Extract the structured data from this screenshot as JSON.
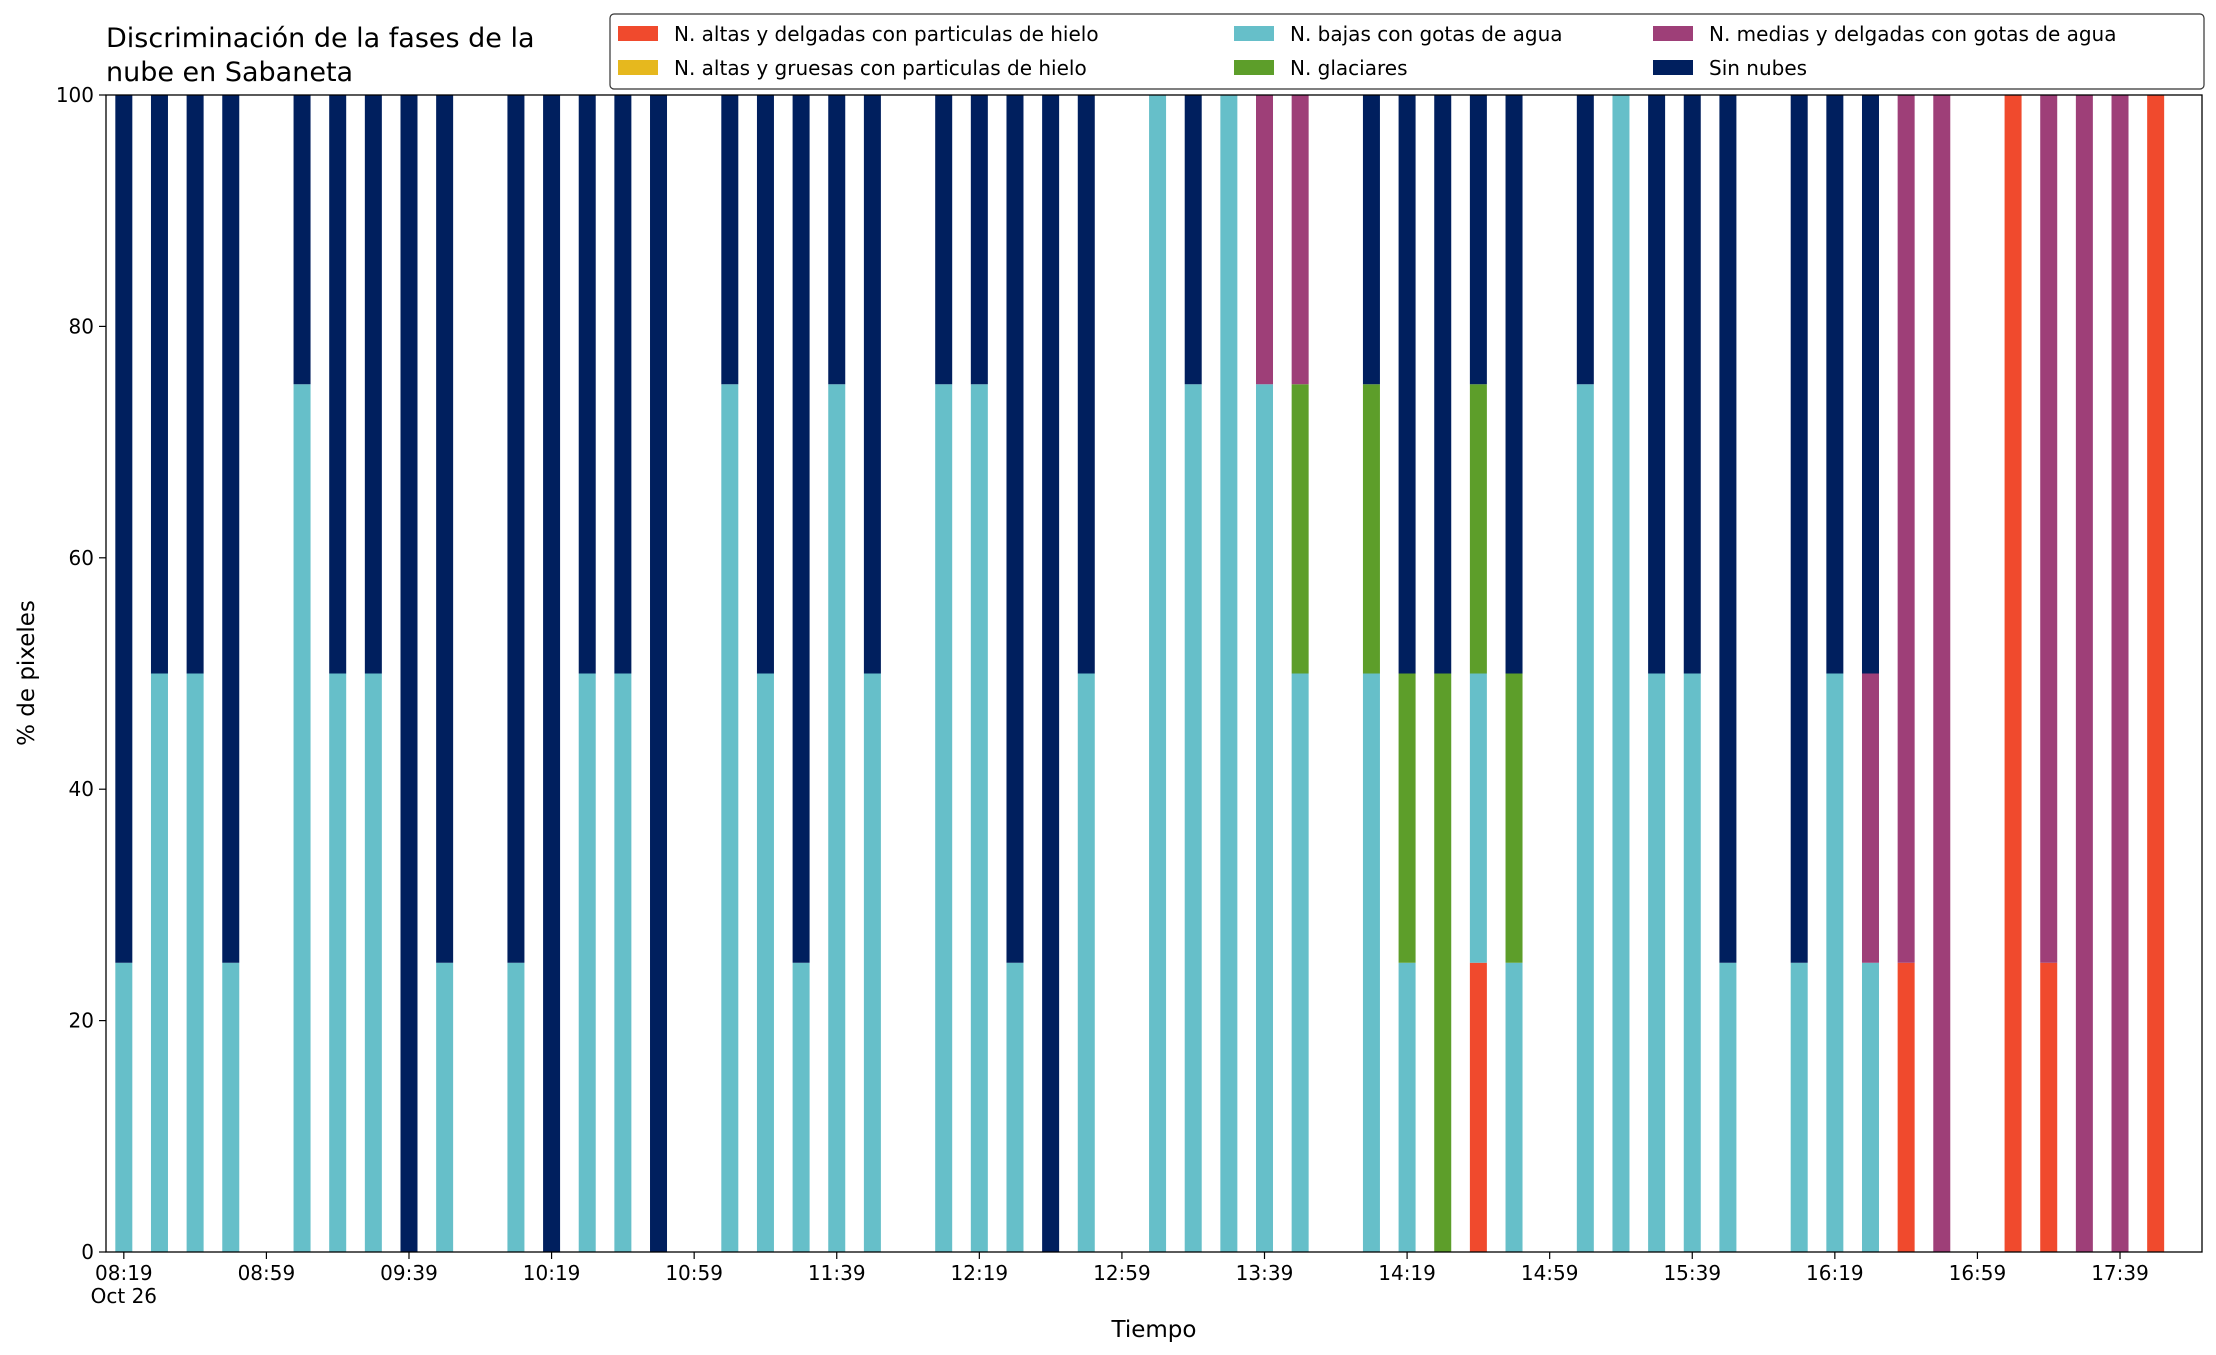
{
  "chart_data": {
    "type": "stacked_bar",
    "title": "Discriminación de la fases de la\nnube en Sabaneta",
    "xlabel": "Tiempo",
    "ylabel": "% de pixeles",
    "x": [
      "08:19",
      "08:29",
      "08:39",
      "08:49",
      "09:09",
      "09:19",
      "09:29",
      "09:39",
      "09:49",
      "10:09",
      "10:19",
      "10:29",
      "10:39",
      "10:49",
      "11:09",
      "11:19",
      "11:29",
      "11:39",
      "11:49",
      "12:09",
      "12:19",
      "12:29",
      "12:39",
      "12:49",
      "13:09",
      "13:19",
      "13:29",
      "13:39",
      "13:49",
      "14:09",
      "14:19",
      "14:29",
      "14:39",
      "14:49",
      "15:09",
      "15:19",
      "15:29",
      "15:39",
      "15:49",
      "16:09",
      "16:19",
      "16:29",
      "16:39",
      "16:49",
      "17:09",
      "17:19",
      "17:29",
      "17:39",
      "17:49"
    ],
    "xlim": [
      "08:14",
      "18:02"
    ],
    "xticks": [
      {
        "value": "08:19",
        "label": "08:19\nOct 26"
      },
      "08:59",
      "09:39",
      "10:19",
      "10:59",
      "11:39",
      "12:19",
      "12:59",
      "13:39",
      "14:19",
      "14:59",
      "15:39",
      "16:19",
      "16:59",
      "17:39"
    ],
    "ylim": [
      0,
      100
    ],
    "yticks": [
      0,
      20,
      40,
      60,
      80,
      100
    ],
    "grid": false,
    "legend_position": "top-right",
    "legend_columns": 3,
    "series": [
      {
        "name": "N. altas y delgadas con particulas de hielo",
        "color": "#f04a2d",
        "values": [
          0,
          0,
          0,
          0,
          0,
          0,
          0,
          0,
          0,
          0,
          0,
          0,
          0,
          0,
          0,
          0,
          0,
          0,
          0,
          0,
          0,
          0,
          0,
          0,
          0,
          0,
          0,
          0,
          0,
          0,
          0,
          0,
          25,
          0,
          0,
          0,
          0,
          0,
          0,
          0,
          0,
          0,
          25,
          0,
          100,
          25,
          0,
          0,
          100
        ]
      },
      {
        "name": "N. altas y gruesas con particulas de hielo",
        "color": "#e6b81e",
        "values": [
          0,
          0,
          0,
          0,
          0,
          0,
          0,
          0,
          0,
          0,
          0,
          0,
          0,
          0,
          0,
          0,
          0,
          0,
          0,
          0,
          0,
          0,
          0,
          0,
          0,
          0,
          0,
          0,
          0,
          0,
          0,
          0,
          0,
          0,
          0,
          0,
          0,
          0,
          0,
          0,
          0,
          0,
          0,
          0,
          0,
          0,
          0,
          0,
          0
        ]
      },
      {
        "name": "N. bajas con gotas de agua",
        "color": "#66bfc9",
        "values": [
          25,
          50,
          50,
          25,
          75,
          50,
          50,
          0,
          25,
          25,
          0,
          50,
          50,
          0,
          75,
          50,
          25,
          75,
          50,
          75,
          75,
          25,
          0,
          50,
          100,
          75,
          100,
          75,
          50,
          50,
          25,
          0,
          25,
          25,
          75,
          100,
          50,
          50,
          25,
          25,
          50,
          25,
          0,
          0,
          0,
          0,
          0,
          0,
          0
        ]
      },
      {
        "name": "N. glaciares",
        "color": "#5d9e2a",
        "values": [
          0,
          0,
          0,
          0,
          0,
          0,
          0,
          0,
          0,
          0,
          0,
          0,
          0,
          0,
          0,
          0,
          0,
          0,
          0,
          0,
          0,
          0,
          0,
          0,
          0,
          0,
          0,
          0,
          25,
          25,
          25,
          50,
          25,
          25,
          0,
          0,
          0,
          0,
          0,
          0,
          0,
          0,
          0,
          0,
          0,
          0,
          0,
          0,
          0
        ]
      },
      {
        "name": "N. medias y delgadas con gotas de agua",
        "color": "#9e3f78",
        "values": [
          0,
          0,
          0,
          0,
          0,
          0,
          0,
          0,
          0,
          0,
          0,
          0,
          0,
          0,
          0,
          0,
          0,
          0,
          0,
          0,
          0,
          0,
          0,
          0,
          0,
          0,
          0,
          25,
          25,
          0,
          0,
          0,
          0,
          0,
          0,
          0,
          0,
          0,
          0,
          0,
          0,
          25,
          75,
          100,
          0,
          75,
          100,
          100,
          0
        ]
      },
      {
        "name": "Sin nubes",
        "color": "#001f5e",
        "values": [
          75,
          50,
          50,
          75,
          25,
          50,
          50,
          100,
          75,
          75,
          100,
          50,
          50,
          100,
          25,
          50,
          75,
          25,
          50,
          25,
          25,
          75,
          100,
          50,
          0,
          25,
          0,
          0,
          0,
          25,
          50,
          50,
          25,
          50,
          25,
          0,
          50,
          50,
          75,
          75,
          50,
          50,
          0,
          0,
          0,
          0,
          0,
          0,
          0
        ]
      }
    ]
  }
}
